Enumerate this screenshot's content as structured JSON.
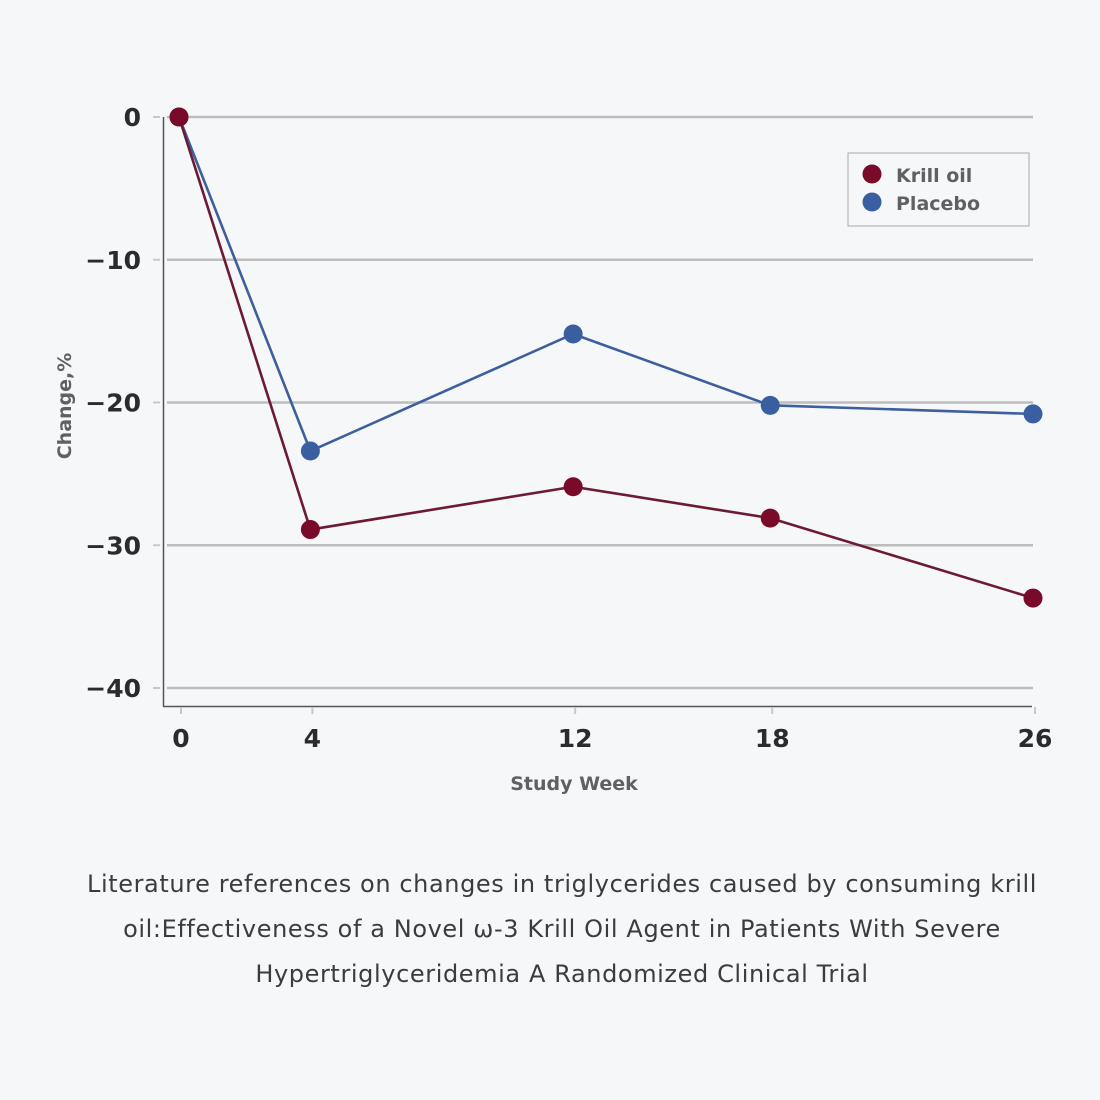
{
  "chart_data": {
    "type": "line",
    "title": "",
    "xlabel": "Study Week",
    "ylabel": "Change,%",
    "x": [
      0,
      4,
      12,
      18,
      26
    ],
    "x_tick_labels": [
      "0",
      "4",
      "12",
      "18",
      "26"
    ],
    "xlim": [
      0,
      26
    ],
    "ylim": [
      -40,
      0
    ],
    "y_ticks": [
      0,
      -10,
      -20,
      -30,
      -40
    ],
    "y_tick_labels": [
      "0",
      "−10",
      "−20",
      "−30",
      "−40"
    ],
    "grid": "horizontal",
    "legend_position": "top-right",
    "series": [
      {
        "name": "Krill oil",
        "color": "#7a0a2a",
        "line_color": "#6d1a33",
        "values": [
          0,
          -28.9,
          -25.9,
          -28.1,
          -33.7
        ]
      },
      {
        "name": "Placebo",
        "color": "#3a5fa0",
        "line_color": "#3d5f9e",
        "values": [
          0,
          -23.4,
          -15.2,
          -20.2,
          -20.8
        ]
      }
    ]
  },
  "caption": "Literature references on changes in triglycerides caused by consuming krill oil:Effectiveness of a Novel ω-3 Krill Oil Agent in Patients With Severe Hypertriglyceridemia A Randomized Clinical Trial"
}
